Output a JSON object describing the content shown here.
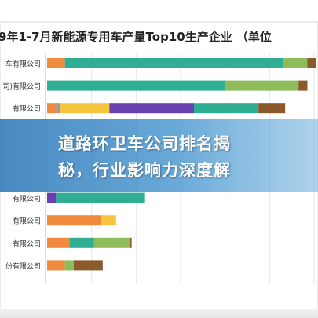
{
  "chart_data": {
    "type": "bar",
    "stacked": true,
    "orientation": "horizontal",
    "title": "9年1-7月新能源专用车产量Top10生产企业 （单位",
    "categories": [
      "车有限公司",
      "司)有限公司",
      "有限公司",
      "",
      "",
      "",
      "有限公司",
      "有限公司",
      "有限公司",
      "份有限公司"
    ],
    "series": [
      {
        "color": "#f08a3c",
        "values": [
          8,
          0,
          4,
          0,
          0,
          0,
          0,
          24,
          10,
          8
        ]
      },
      {
        "color": "#8fbc5a",
        "values": [
          0,
          0,
          0,
          0,
          0,
          0,
          0,
          0,
          0,
          4
        ]
      },
      {
        "color": "#9a9a9a",
        "values": [
          0,
          0,
          2,
          0,
          0,
          0,
          0,
          0,
          0,
          0
        ]
      },
      {
        "color": "#f6c53e",
        "values": [
          0,
          0,
          22,
          0,
          0,
          0,
          0,
          7,
          0,
          0
        ]
      },
      {
        "color": "#6a3fb0",
        "values": [
          0,
          0,
          38,
          0,
          0,
          0,
          4,
          0,
          0,
          0
        ]
      },
      {
        "color": "#2fae94",
        "values": [
          98,
          80,
          29,
          0,
          0,
          0,
          40,
          0,
          11,
          0
        ]
      },
      {
        "color": "#8fbc5a",
        "values": [
          11,
          33,
          0,
          0,
          0,
          0,
          0,
          0,
          16,
          0
        ]
      },
      {
        "color": "#8a5a2b",
        "values": [
          4,
          4,
          12,
          0,
          0,
          0,
          0,
          0,
          1,
          13
        ]
      }
    ],
    "xlim": [
      0,
      120
    ],
    "grid": true
  },
  "banner": {
    "text": "道路环卫车公司排名揭\n秘，行业影响力深度解"
  }
}
